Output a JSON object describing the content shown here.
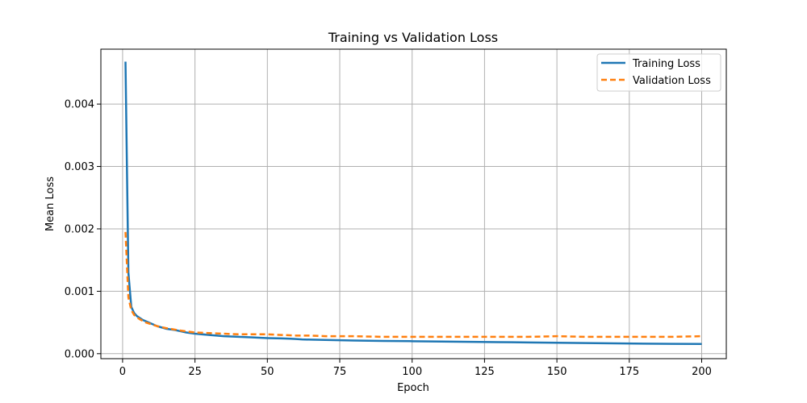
{
  "chart_data": {
    "type": "line",
    "title": "Training vs Validation Loss",
    "xlabel": "Epoch",
    "ylabel": "Mean Loss",
    "xlim": [
      -7.5,
      208.5
    ],
    "ylim": [
      -8e-05,
      0.00488
    ],
    "xticks": [
      0,
      25,
      50,
      75,
      100,
      125,
      150,
      175,
      200
    ],
    "yticks": [
      0.0,
      0.001,
      0.002,
      0.003,
      0.004
    ],
    "ytick_labels": [
      "0.000",
      "0.001",
      "0.002",
      "0.003",
      "0.004"
    ],
    "grid": true,
    "legend_position": "top-right",
    "series": [
      {
        "name": "Training Loss",
        "color": "#1f77b4",
        "style": "solid",
        "x": [
          1,
          2,
          3,
          4,
          5,
          6,
          7,
          8,
          10,
          12,
          15,
          18,
          20,
          22,
          25,
          30,
          35,
          40,
          45,
          50,
          55,
          58,
          60,
          62,
          65,
          70,
          75,
          80,
          90,
          100,
          110,
          120,
          130,
          140,
          150,
          160,
          170,
          180,
          190,
          200
        ],
        "values": [
          0.00468,
          0.0013,
          0.00075,
          0.00065,
          0.0006,
          0.00057,
          0.00054,
          0.00052,
          0.00048,
          0.00044,
          0.0004,
          0.00038,
          0.00036,
          0.00034,
          0.00032,
          0.0003,
          0.00028,
          0.00027,
          0.00026,
          0.00025,
          0.000245,
          0.00024,
          0.000235,
          0.000228,
          0.000225,
          0.00022,
          0.000215,
          0.00021,
          0.000205,
          0.0002,
          0.000195,
          0.00019,
          0.000185,
          0.00018,
          0.000175,
          0.00017,
          0.000165,
          0.00016,
          0.000158,
          0.000155
        ]
      },
      {
        "name": "Validation Loss",
        "color": "#ff7f0e",
        "style": "dashed",
        "x": [
          1,
          2,
          3,
          4,
          5,
          6,
          8,
          10,
          12,
          15,
          20,
          25,
          30,
          35,
          40,
          45,
          50,
          55,
          60,
          65,
          70,
          75,
          80,
          90,
          100,
          110,
          120,
          130,
          140,
          150,
          160,
          170,
          180,
          190,
          200
        ],
        "values": [
          0.00195,
          0.0009,
          0.0007,
          0.00062,
          0.00058,
          0.00055,
          0.0005,
          0.00047,
          0.00044,
          0.00041,
          0.00037,
          0.00034,
          0.00033,
          0.00032,
          0.00031,
          0.00031,
          0.00031,
          0.0003,
          0.00029,
          0.00029,
          0.00028,
          0.00028,
          0.00028,
          0.00027,
          0.00027,
          0.00027,
          0.00027,
          0.00027,
          0.00027,
          0.00028,
          0.00027,
          0.00027,
          0.00027,
          0.00027,
          0.00028
        ]
      }
    ]
  }
}
